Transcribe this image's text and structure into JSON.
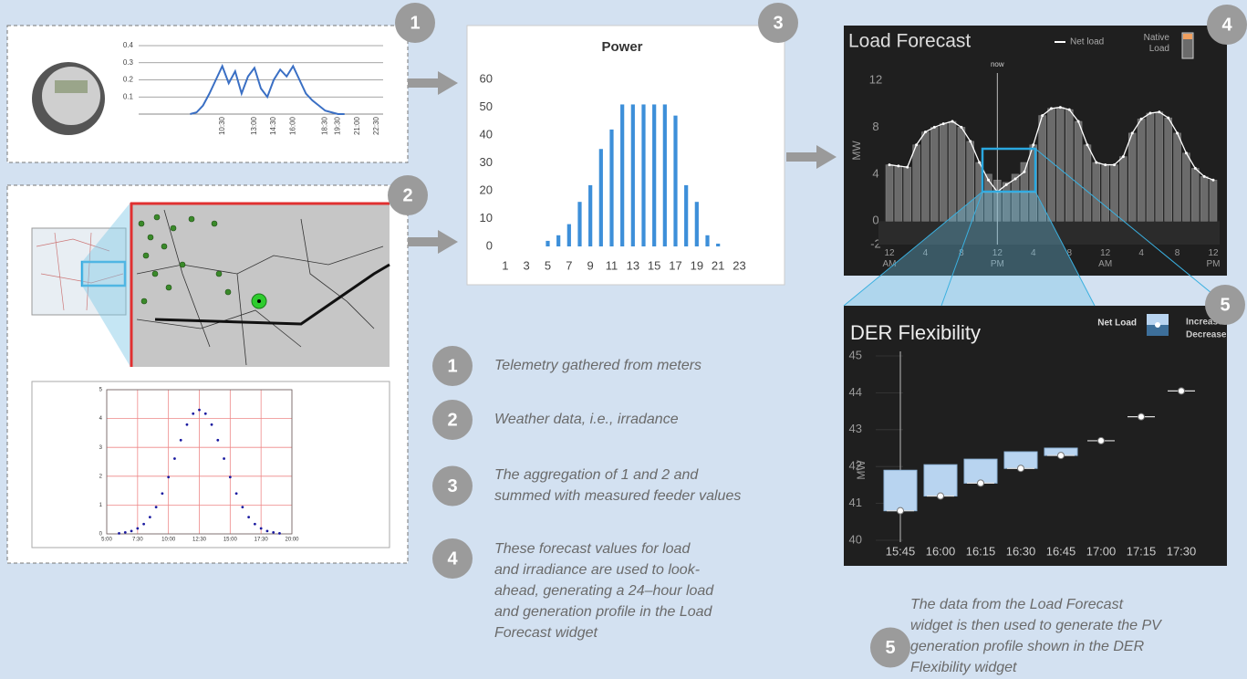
{
  "steps": [
    {
      "number": "1",
      "lines": [
        "Telemetry gathered from meters"
      ]
    },
    {
      "number": "2",
      "lines": [
        "Weather data, i.e., irradance"
      ]
    },
    {
      "number": "3",
      "lines": [
        "The aggregation of 1 and 2 and",
        "summed with measured feeder values"
      ]
    },
    {
      "number": "4",
      "lines": [
        "These forecast values for load",
        "and irradiance are used to look-",
        "ahead, generating a 24–hour load",
        "and generation profile in the Load",
        "Forecast widget"
      ]
    },
    {
      "number": "5",
      "lines": [
        "The data from the Load Forecast",
        "widget is then used to generate the PV",
        "generation profile shown in the DER",
        "Flexibility widget"
      ]
    }
  ],
  "chart_data": [
    {
      "type": "line",
      "color": "#3a6fc4",
      "grid": true,
      "x": [
        8,
        8.5,
        9,
        9.5,
        10,
        10.5,
        11,
        11.5,
        12,
        12.5,
        13,
        13.5,
        14,
        14.5,
        15,
        15.5,
        16,
        16.5,
        17,
        17.5,
        18,
        18.5,
        19,
        19.5,
        20
      ],
      "values": [
        0,
        0.01,
        0.05,
        0.12,
        0.2,
        0.28,
        0.18,
        0.25,
        0.12,
        0.22,
        0.27,
        0.15,
        0.1,
        0.2,
        0.26,
        0.22,
        0.28,
        0.2,
        0.12,
        0.08,
        0.05,
        0.02,
        0.01,
        0,
        0
      ],
      "xlim": [
        4,
        23
      ],
      "xticks": [
        {
          "value": 10.5,
          "label": "10:30"
        },
        {
          "value": 13,
          "label": "13:00"
        },
        {
          "value": 14.5,
          "label": "14:30"
        },
        {
          "value": 16,
          "label": "16:00"
        },
        {
          "value": 18.5,
          "label": "18:30"
        },
        {
          "value": 19.5,
          "label": "19:30"
        },
        {
          "value": 21,
          "label": "21:00"
        },
        {
          "value": 22.5,
          "label": "22:30"
        }
      ],
      "ylim": [
        0,
        0.4
      ],
      "yticks": [
        0.1,
        0.2,
        0.3,
        0.4
      ]
    },
    {
      "type": "bar",
      "title": "Power",
      "color": "#3d8fd9",
      "grid": false,
      "categories": [
        "1",
        null,
        "3",
        null,
        "5",
        null,
        "7",
        null,
        "9",
        null,
        "11",
        null,
        "13",
        null,
        "15",
        null,
        "17",
        null,
        "19",
        null,
        "21",
        null,
        "23",
        null
      ],
      "values": [
        0,
        0,
        0,
        0,
        2,
        4,
        8,
        16,
        22,
        35,
        42,
        51,
        51,
        51,
        51,
        51,
        47,
        22,
        16,
        4,
        1,
        0,
        0,
        0
      ],
      "ylim": [
        0,
        60
      ],
      "yticks": [
        0,
        10,
        20,
        30,
        40,
        50,
        60
      ]
    },
    {
      "type": "scatter",
      "color": "#1a1aa0",
      "grid": true,
      "x": [
        6,
        6.5,
        7,
        7.5,
        8,
        8.5,
        9,
        9.5,
        10,
        10.5,
        11,
        11.5,
        12,
        12.5,
        13,
        13.5,
        14,
        14.5,
        15,
        15.5,
        16,
        16.5,
        17,
        17.5,
        18,
        18.5,
        19
      ],
      "values": [
        0.02,
        0.05,
        0.1,
        0.19,
        0.34,
        0.58,
        0.93,
        1.4,
        1.97,
        2.61,
        3.25,
        3.79,
        4.17,
        4.3,
        4.17,
        3.79,
        3.25,
        2.61,
        1.97,
        1.4,
        0.93,
        0.58,
        0.34,
        0.19,
        0.1,
        0.05,
        0.02
      ],
      "xlim": [
        5,
        20
      ],
      "xticks": [
        {
          "value": 5,
          "label": "5:00"
        },
        {
          "value": 7.5,
          "label": "7:30"
        },
        {
          "value": 10,
          "label": "10:00"
        },
        {
          "value": 12.5,
          "label": "12:30"
        },
        {
          "value": 15,
          "label": "15:00"
        },
        {
          "value": 17.5,
          "label": "17:30"
        },
        {
          "value": 20,
          "label": "20:00"
        }
      ],
      "ylim": [
        0,
        5
      ],
      "yticks": [
        0,
        1,
        2,
        3,
        4,
        5
      ]
    },
    {
      "type": "combo",
      "title": "Load Forecast",
      "y_label": "MW",
      "annotation": "now",
      "now": 12,
      "grid": false,
      "x": [
        0,
        1,
        2,
        3,
        4,
        5,
        6,
        7,
        8,
        9,
        10,
        11,
        12,
        13,
        14,
        15,
        16,
        17,
        18,
        19,
        20,
        21,
        22,
        23,
        24,
        25,
        26,
        27,
        28,
        29,
        30,
        31,
        32,
        33,
        34,
        35,
        36
      ],
      "series": [
        {
          "name": "Native Load",
          "color": "#6b6b6b",
          "values": [
            4.8,
            4.7,
            4.6,
            6.5,
            7.6,
            8,
            8.3,
            8.5,
            8,
            6.8,
            5,
            4,
            3.5,
            3.3,
            4,
            5,
            6.5,
            9,
            9.6,
            9.7,
            9.5,
            8.5,
            6.5,
            5,
            4.8,
            4.8,
            5.5,
            7.5,
            8.7,
            9.2,
            9.3,
            8.8,
            7.5,
            5.8,
            4.5,
            3.8,
            3.5
          ]
        },
        {
          "name": "Net load",
          "color": "#ffffff",
          "values": [
            4.8,
            4.7,
            4.6,
            6.5,
            7.6,
            8,
            8.3,
            8.5,
            8,
            6.8,
            5,
            3.5,
            2.5,
            3.1,
            3.6,
            4.2,
            6.5,
            9,
            9.6,
            9.7,
            9.5,
            8.5,
            6.5,
            5,
            4.8,
            4.8,
            5.5,
            7.5,
            8.7,
            9.2,
            9.3,
            8.8,
            7.5,
            5.8,
            4.5,
            3.8,
            3.5
          ]
        }
      ],
      "xlim": [
        0,
        36
      ],
      "xticks": [
        {
          "value": 0,
          "label": "12 AM"
        },
        {
          "value": 4,
          "label": "4"
        },
        {
          "value": 8,
          "label": "8"
        },
        {
          "value": 12,
          "label": "12 PM"
        },
        {
          "value": 16,
          "label": "4"
        },
        {
          "value": 20,
          "label": "8"
        },
        {
          "value": 24,
          "label": "12 AM"
        },
        {
          "value": 28,
          "label": "4"
        },
        {
          "value": 32,
          "label": "8"
        },
        {
          "value": 36,
          "label": "12 PM"
        }
      ],
      "ylim": [
        -2,
        12
      ],
      "yticks": [
        -2,
        0,
        4,
        8,
        12
      ]
    },
    {
      "type": "range",
      "title": "DER Flexibility",
      "y_label": "MW",
      "grid": true,
      "categories": [
        "15:45",
        "16:00",
        "16:15",
        "16:30",
        "16:45",
        "17:00",
        "17:15",
        "17:30"
      ],
      "series": [
        {
          "name": "Net Load",
          "color": "#ffffff",
          "values": [
            40.8,
            41.2,
            41.55,
            41.95,
            42.3,
            42.7,
            43.35,
            44.05
          ]
        },
        {
          "name": "Increase",
          "color": "#b8d4f0",
          "values": [
            41.9,
            42.05,
            42.2,
            42.4,
            42.5,
            42.7,
            43.35,
            44.05
          ]
        },
        {
          "name": "Decrease",
          "color": "#3d6f9a",
          "values": [
            40.8,
            41.2,
            41.55,
            41.95,
            42.3,
            42.7,
            43.35,
            44.05
          ]
        }
      ],
      "ylim": [
        40,
        45
      ],
      "yticks": [
        40,
        41,
        42,
        43,
        44,
        45
      ]
    }
  ]
}
